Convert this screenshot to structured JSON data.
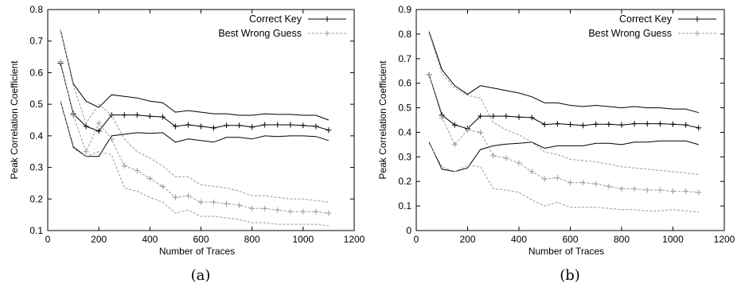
{
  "chart_data": [
    {
      "type": "line",
      "caption": "(a)",
      "xlabel": "Number of Traces",
      "ylabel": "Peak Correlation Coefficient",
      "xlim": [
        0,
        1200
      ],
      "ylim": [
        0.1,
        0.8
      ],
      "xticks": [
        0,
        200,
        400,
        600,
        800,
        1000,
        1200
      ],
      "yticks": [
        0.1,
        0.2,
        0.3,
        0.4,
        0.5,
        0.6,
        0.7,
        0.8
      ],
      "legend_position": "top-right",
      "x": [
        50,
        100,
        150,
        200,
        250,
        300,
        350,
        400,
        450,
        500,
        550,
        600,
        650,
        700,
        750,
        800,
        850,
        900,
        950,
        1000,
        1050,
        1100
      ],
      "series": [
        {
          "name": "Correct Key",
          "role": "mean",
          "color": "#000000",
          "markers": true,
          "values": [
            0.63,
            0.47,
            0.43,
            0.415,
            0.466,
            0.466,
            0.466,
            0.462,
            0.46,
            0.43,
            0.435,
            0.43,
            0.425,
            0.433,
            0.433,
            0.428,
            0.435,
            0.435,
            0.435,
            0.433,
            0.43,
            0.418
          ]
        },
        {
          "role": "upper",
          "color": "#000000",
          "markers": false,
          "values": [
            0.735,
            0.565,
            0.51,
            0.49,
            0.53,
            0.525,
            0.52,
            0.51,
            0.505,
            0.475,
            0.48,
            0.475,
            0.47,
            0.47,
            0.465,
            0.465,
            0.47,
            0.468,
            0.468,
            0.465,
            0.465,
            0.45
          ]
        },
        {
          "role": "lower",
          "color": "#000000",
          "markers": false,
          "values": [
            0.51,
            0.365,
            0.335,
            0.335,
            0.4,
            0.405,
            0.41,
            0.408,
            0.41,
            0.38,
            0.39,
            0.385,
            0.38,
            0.395,
            0.395,
            0.39,
            0.4,
            0.398,
            0.4,
            0.4,
            0.398,
            0.385
          ]
        },
        {
          "name": "Best Wrong Guess",
          "role": "mean",
          "color": "#999999",
          "markers": true,
          "values": [
            0.635,
            0.465,
            0.35,
            0.44,
            0.39,
            0.305,
            0.29,
            0.265,
            0.24,
            0.205,
            0.21,
            0.19,
            0.19,
            0.185,
            0.18,
            0.17,
            0.17,
            0.165,
            0.16,
            0.16,
            0.16,
            0.155
          ]
        },
        {
          "role": "upper",
          "color": "#999999",
          "markers": false,
          "values": [
            0.735,
            0.56,
            0.44,
            0.5,
            0.465,
            0.39,
            0.35,
            0.33,
            0.305,
            0.27,
            0.27,
            0.245,
            0.24,
            0.235,
            0.225,
            0.21,
            0.21,
            0.205,
            0.2,
            0.2,
            0.195,
            0.19
          ]
        },
        {
          "role": "lower",
          "color": "#999999",
          "markers": false,
          "values": [
            0.51,
            0.36,
            0.335,
            0.35,
            0.34,
            0.235,
            0.225,
            0.205,
            0.19,
            0.155,
            0.165,
            0.145,
            0.145,
            0.14,
            0.135,
            0.125,
            0.125,
            0.12,
            0.12,
            0.12,
            0.12,
            0.115
          ]
        }
      ]
    },
    {
      "type": "line",
      "caption": "(b)",
      "xlabel": "Number of Traces",
      "ylabel": "Peak Correlation Coefficient",
      "xlim": [
        0,
        1200
      ],
      "ylim": [
        0,
        0.9
      ],
      "xticks": [
        0,
        200,
        400,
        600,
        800,
        1000,
        1200
      ],
      "yticks": [
        0,
        0.1,
        0.2,
        0.3,
        0.4,
        0.5,
        0.6,
        0.7,
        0.8,
        0.9
      ],
      "legend_position": "top-right",
      "x": [
        50,
        100,
        150,
        200,
        250,
        300,
        350,
        400,
        450,
        500,
        550,
        600,
        650,
        700,
        750,
        800,
        850,
        900,
        950,
        1000,
        1050,
        1100
      ],
      "series": [
        {
          "name": "Correct Key",
          "role": "mean",
          "color": "#000000",
          "markers": true,
          "values": [
            0.635,
            0.47,
            0.43,
            0.415,
            0.466,
            0.466,
            0.466,
            0.462,
            0.46,
            0.432,
            0.435,
            0.432,
            0.428,
            0.433,
            0.433,
            0.43,
            0.435,
            0.435,
            0.435,
            0.433,
            0.43,
            0.418
          ]
        },
        {
          "role": "upper",
          "color": "#000000",
          "markers": false,
          "values": [
            0.81,
            0.655,
            0.59,
            0.555,
            0.59,
            0.58,
            0.57,
            0.56,
            0.545,
            0.52,
            0.52,
            0.51,
            0.505,
            0.51,
            0.505,
            0.5,
            0.505,
            0.5,
            0.5,
            0.495,
            0.495,
            0.48
          ]
        },
        {
          "role": "lower",
          "color": "#000000",
          "markers": false,
          "values": [
            0.36,
            0.25,
            0.24,
            0.255,
            0.33,
            0.345,
            0.352,
            0.355,
            0.36,
            0.335,
            0.345,
            0.345,
            0.345,
            0.355,
            0.355,
            0.35,
            0.36,
            0.36,
            0.365,
            0.365,
            0.365,
            0.35
          ]
        },
        {
          "name": "Best Wrong Guess",
          "role": "mean",
          "color": "#999999",
          "markers": true,
          "values": [
            0.635,
            0.46,
            0.35,
            0.41,
            0.4,
            0.305,
            0.295,
            0.275,
            0.24,
            0.21,
            0.215,
            0.195,
            0.195,
            0.19,
            0.18,
            0.17,
            0.17,
            0.165,
            0.165,
            0.16,
            0.16,
            0.155
          ]
        },
        {
          "role": "upper",
          "color": "#999999",
          "markers": false,
          "values": [
            0.805,
            0.64,
            0.58,
            0.55,
            0.54,
            0.44,
            0.41,
            0.39,
            0.36,
            0.32,
            0.31,
            0.29,
            0.285,
            0.28,
            0.27,
            0.26,
            0.255,
            0.25,
            0.245,
            0.24,
            0.235,
            0.228
          ]
        },
        {
          "role": "lower",
          "color": "#999999",
          "markers": false,
          "values": [
            0.355,
            0.26,
            0.24,
            0.265,
            0.26,
            0.17,
            0.165,
            0.155,
            0.125,
            0.1,
            0.115,
            0.095,
            0.095,
            0.095,
            0.09,
            0.085,
            0.085,
            0.08,
            0.08,
            0.085,
            0.08,
            0.075
          ]
        }
      ]
    }
  ]
}
